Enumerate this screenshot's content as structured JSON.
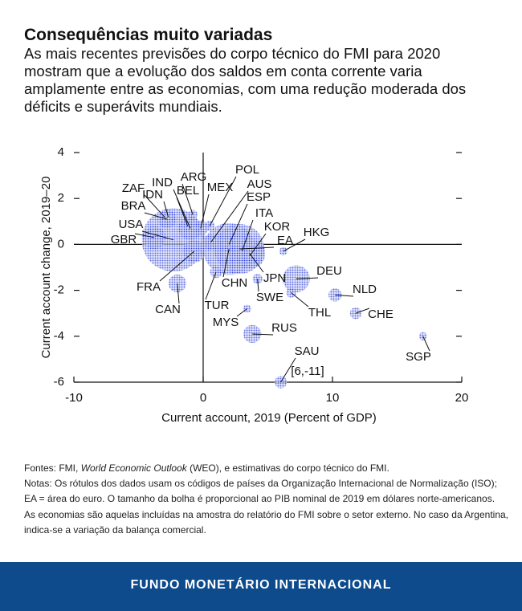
{
  "header": {
    "title": "Consequências muito variadas",
    "subtitle": "As mais recentes previsões do corpo técnico do FMI para 2020 mostram que a evolução dos saldos em conta corrente varia amplamente entre as economias, com uma redução moderada dos déficits e superávits mundiais."
  },
  "chart_data": {
    "type": "scatter",
    "xlabel": "Current account, 2019 (Percent of GDP)",
    "ylabel": "Current account change, 2019–20",
    "xlim": [
      -10,
      20
    ],
    "ylim": [
      -6,
      4
    ],
    "xticks": [
      -10,
      0,
      10,
      20
    ],
    "yticks": [
      -6,
      -4,
      -2,
      0,
      2,
      4
    ],
    "color": "#2b3fd6",
    "labels": [
      "ZAF",
      "IND",
      "IDN",
      "BRA",
      "USA",
      "GBR",
      "ARG",
      "BEL",
      "MEX",
      "POL",
      "AUS",
      "ESP",
      "ITA",
      "KOR",
      "EA",
      "HKG",
      "CHN",
      "JPN",
      "SWE",
      "DEU",
      "NLD",
      "THL",
      "CHE",
      "SGP",
      "RUS",
      "MYS",
      "TUR",
      "CAN",
      "FRA",
      "SAU"
    ],
    "x": [
      -3.0,
      -1.0,
      -2.7,
      -2.8,
      -2.3,
      -3.8,
      -0.8,
      -1.2,
      -0.2,
      0.5,
      0.6,
      2.0,
      3.0,
      3.6,
      2.8,
      6.2,
      2.0,
      3.6,
      4.2,
      7.2,
      10.2,
      6.8,
      11.8,
      17.0,
      3.8,
      3.4,
      1.0,
      -2.0,
      -0.7,
      6.0
    ],
    "values": [
      1.2,
      0.7,
      1.2,
      1.1,
      0.2,
      0.3,
      1.3,
      0.8,
      0.7,
      0.8,
      0.1,
      0.0,
      -0.3,
      -0.5,
      -0.2,
      -0.3,
      -0.2,
      -0.4,
      -1.5,
      -1.5,
      -2.2,
      -2.1,
      -3.0,
      -4.0,
      -3.9,
      -2.8,
      -1.2,
      -1.7,
      -0.3,
      -6.0
    ],
    "sizes": [
      350,
      2900,
      1120,
      1800,
      21400,
      2800,
      450,
      530,
      1270,
      590,
      1400,
      1400,
      2000,
      1650,
      13300,
      365,
      14300,
      5100,
      530,
      3900,
      910,
      540,
      700,
      370,
      1700,
      365,
      760,
      1700,
      2700,
      790
    ],
    "annotation": "[6,-11]"
  },
  "notes": {
    "source_prefix": "Fontes: FMI, ",
    "source_italic": "World Economic Outlook",
    "source_suffix": " (WEO), e estimativas do corpo técnico do FMI.",
    "lines": [
      "Notas: Os rótulos dos dados usam os códigos de países da Organização Internacional de Normalização (ISO);",
      "EA = área do euro. O tamanho da bolha é proporcional ao PIB nominal de 2019 em dólares norte-americanos.",
      "As economias são aquelas incluídas na amostra do relatório do FMI sobre o setor externo. No caso da Argentina,",
      "indica-se a variação da balança comercial."
    ]
  },
  "footer": {
    "text": "FUNDO MONETÁRIO INTERNACIONAL"
  }
}
